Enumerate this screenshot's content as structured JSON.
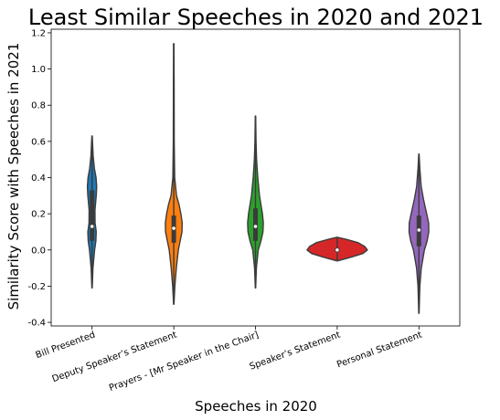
{
  "chart_data": {
    "type": "violin",
    "title": "Least Similar Speeches in 2020 and 2021",
    "xlabel": "Speeches in 2020",
    "ylabel": "Similarity Score with Speeches in 2021",
    "ylim": [
      -0.42,
      1.22
    ],
    "yticks": [
      "-0.4",
      "-0.2",
      "0.0",
      "0.2",
      "0.4",
      "0.6",
      "0.8",
      "1.0",
      "1.2"
    ],
    "ytick_values": [
      -0.4,
      -0.2,
      0.0,
      0.2,
      0.4,
      0.6,
      0.8,
      1.0,
      1.2
    ],
    "grid": false,
    "categories": [
      "Bill Presented",
      "Deputy Speaker’s Statement",
      "Prayers - [Mr Speaker in the Chair]",
      "Speaker’s Statement",
      "Personal Statement"
    ],
    "series": [
      {
        "color": "#1f77b4",
        "min": -0.21,
        "q1": 0.05,
        "median": 0.13,
        "q3": 0.33,
        "max": 0.63,
        "profile": [
          [
            -0.21,
            0.2
          ],
          [
            -0.1,
            1
          ],
          [
            0.0,
            2.8
          ],
          [
            0.05,
            4.2
          ],
          [
            0.1,
            4.6
          ],
          [
            0.15,
            3.3
          ],
          [
            0.22,
            3.2
          ],
          [
            0.3,
            4.6
          ],
          [
            0.35,
            5.1
          ],
          [
            0.4,
            4.4
          ],
          [
            0.45,
            2.6
          ],
          [
            0.52,
            1.2
          ],
          [
            0.6,
            0.5
          ],
          [
            0.63,
            0.2
          ]
        ]
      },
      {
        "color": "#ff7f0e",
        "min": -0.3,
        "q1": 0.04,
        "median": 0.12,
        "q3": 0.19,
        "max": 1.14,
        "profile": [
          [
            -0.3,
            0.2
          ],
          [
            -0.2,
            1.2
          ],
          [
            -0.1,
            2.8
          ],
          [
            0.0,
            5
          ],
          [
            0.05,
            7
          ],
          [
            0.1,
            9
          ],
          [
            0.15,
            9.2
          ],
          [
            0.2,
            7.8
          ],
          [
            0.25,
            5.8
          ],
          [
            0.3,
            3
          ],
          [
            0.4,
            1
          ],
          [
            0.6,
            0.5
          ],
          [
            0.9,
            0.4
          ],
          [
            1.14,
            0.2
          ]
        ]
      },
      {
        "color": "#2ca02c",
        "min": -0.21,
        "q1": 0.05,
        "median": 0.13,
        "q3": 0.23,
        "max": 0.74,
        "profile": [
          [
            -0.21,
            0.2
          ],
          [
            -0.1,
            1
          ],
          [
            0.0,
            3
          ],
          [
            0.05,
            6
          ],
          [
            0.1,
            8.2
          ],
          [
            0.15,
            8.6
          ],
          [
            0.2,
            7.6
          ],
          [
            0.25,
            6
          ],
          [
            0.3,
            4.4
          ],
          [
            0.4,
            2.5
          ],
          [
            0.5,
            1.2
          ],
          [
            0.6,
            0.6
          ],
          [
            0.74,
            0.2
          ]
        ]
      },
      {
        "color": "#d62728",
        "min": -0.06,
        "q1": -0.01,
        "median": 0.0,
        "q3": 0.01,
        "max": 0.07,
        "profile": [
          [
            -0.06,
            0.5
          ],
          [
            -0.04,
            15
          ],
          [
            -0.02,
            28
          ],
          [
            0.0,
            33
          ],
          [
            0.02,
            30
          ],
          [
            0.04,
            23
          ],
          [
            0.06,
            9
          ],
          [
            0.07,
            0.5
          ]
        ]
      },
      {
        "color": "#9467bd",
        "min": -0.35,
        "q1": 0.02,
        "median": 0.11,
        "q3": 0.19,
        "max": 0.53,
        "profile": [
          [
            -0.35,
            0.2
          ],
          [
            -0.2,
            1
          ],
          [
            -0.1,
            2.6
          ],
          [
            0.0,
            6
          ],
          [
            0.05,
            9
          ],
          [
            0.1,
            10.8
          ],
          [
            0.15,
            10.6
          ],
          [
            0.2,
            8.5
          ],
          [
            0.28,
            5
          ],
          [
            0.35,
            2.5
          ],
          [
            0.45,
            1
          ],
          [
            0.53,
            0.2
          ]
        ]
      }
    ]
  }
}
